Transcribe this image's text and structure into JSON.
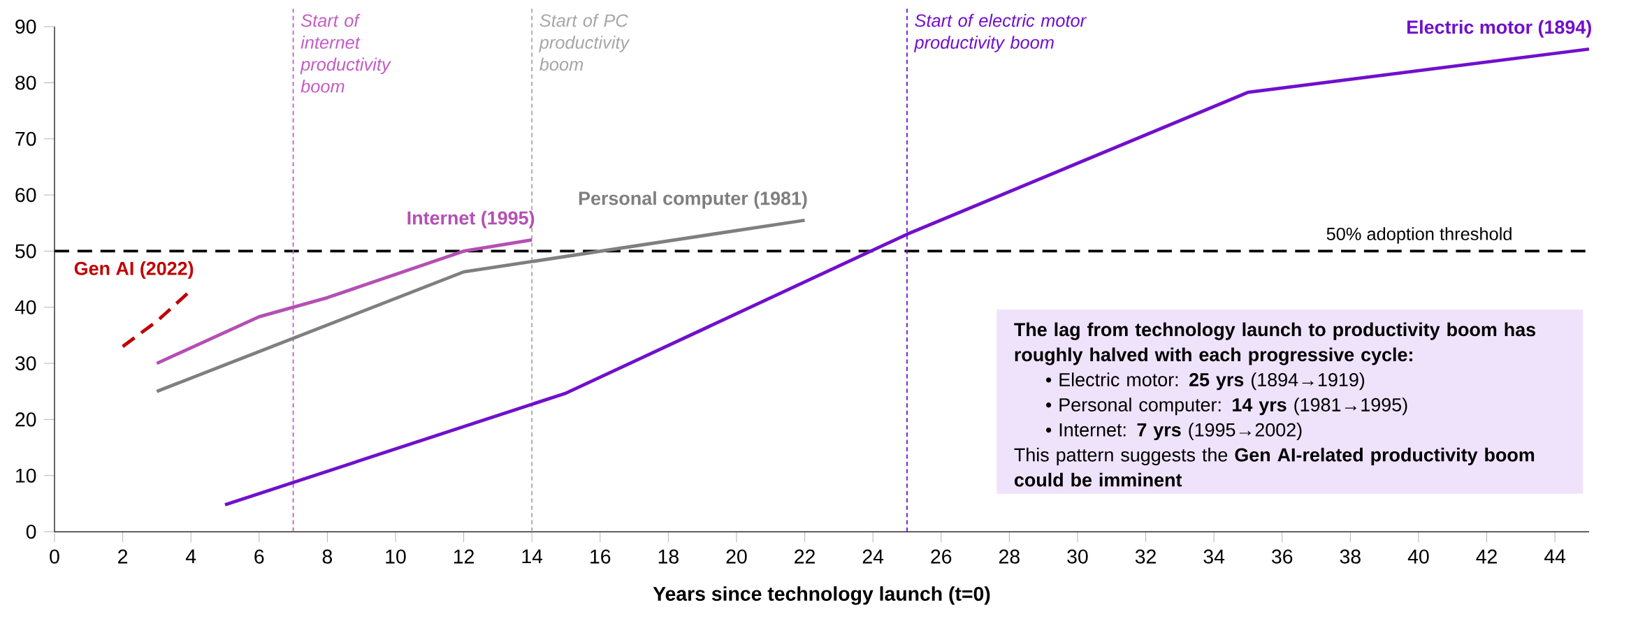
{
  "chart_data": {
    "type": "line",
    "xlabel": "Years since technology launch (t=0)",
    "xlim": [
      0,
      45
    ],
    "ylim": [
      0,
      90
    ],
    "xticks": [
      0,
      2,
      4,
      6,
      8,
      10,
      12,
      14,
      16,
      18,
      20,
      22,
      24,
      26,
      28,
      30,
      32,
      34,
      36,
      38,
      40,
      42,
      44
    ],
    "yticks": [
      0,
      10,
      20,
      30,
      40,
      50,
      60,
      70,
      80,
      90
    ],
    "grid": false,
    "legend": false,
    "marker": "none",
    "series": [
      {
        "name": "Gen AI (2022)",
        "color": "#c00000",
        "line_style": "dashed",
        "x": [
          2,
          3,
          4
        ],
        "values": [
          33,
          37.5,
          43
        ]
      },
      {
        "name": "Internet (1995)",
        "color": "#b44fb4",
        "line_style": "solid",
        "x": [
          3,
          6,
          8,
          12,
          14
        ],
        "values": [
          30,
          38.3,
          41.7,
          50,
          52
        ]
      },
      {
        "name": "Personal computer (1981)",
        "color": "#7f7f7f",
        "line_style": "solid",
        "x": [
          3,
          12,
          22
        ],
        "values": [
          25,
          46.3,
          55.5
        ]
      },
      {
        "name": "Electric motor (1894)",
        "color": "#7010cc",
        "line_style": "solid",
        "x": [
          5,
          15,
          25,
          35,
          45
        ],
        "values": [
          4.8,
          24.7,
          53,
          78.3,
          86
        ]
      }
    ],
    "ref_lines": [
      {
        "axis": "y",
        "value": 50,
        "label": "50% adoption threshold",
        "color": "#000000",
        "line_style": "dashed"
      },
      {
        "axis": "x",
        "value": 7,
        "label": "Start of internet productivity boom",
        "color": "#c45cc4",
        "line_style": "dotted"
      },
      {
        "axis": "x",
        "value": 14,
        "label": "Start of PC productivity boom",
        "color": "#a6a6a6",
        "line_style": "dotted"
      },
      {
        "axis": "x",
        "value": 25,
        "label": "Start of electric motor productivity boom",
        "color": "#7010cc",
        "line_style": "dotted"
      }
    ],
    "annotations": [
      "The lag from technology launch to productivity boom has roughly halved with each progressive cycle:",
      "•  Electric motor: **25 yrs** (1894→1919)",
      "•  Personal computer: **14 yrs** (1981→1995)",
      "•  Internet: **7 yrs** (1995→2002)",
      "This pattern suggests the **Gen AI-related productivity boom could be imminent**"
    ]
  }
}
